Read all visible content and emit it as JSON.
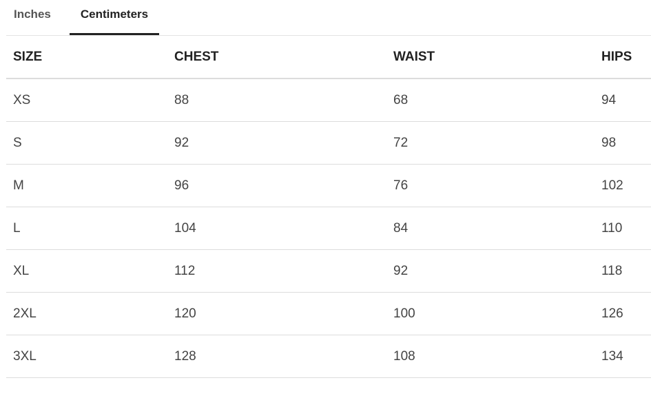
{
  "tabs": [
    {
      "label": "Inches",
      "active": false
    },
    {
      "label": "Centimeters",
      "active": true
    }
  ],
  "table": {
    "headers": [
      "SIZE",
      "CHEST",
      "WAIST",
      "HIPS"
    ],
    "rows": [
      [
        "XS",
        "88",
        "68",
        "94"
      ],
      [
        "S",
        "92",
        "72",
        "98"
      ],
      [
        "M",
        "96",
        "76",
        "102"
      ],
      [
        "L",
        "104",
        "84",
        "110"
      ],
      [
        "XL",
        "112",
        "92",
        "118"
      ],
      [
        "2XL",
        "120",
        "100",
        "126"
      ],
      [
        "3XL",
        "128",
        "108",
        "134"
      ]
    ]
  }
}
